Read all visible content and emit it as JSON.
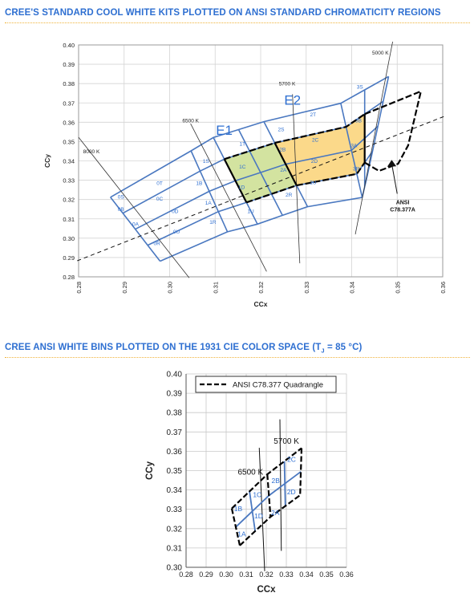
{
  "titles": {
    "chart1": "CREE'S STANDARD COOL WHITE KITS PLOTTED ON ANSI STANDARD CHROMATICITY REGIONS",
    "chart2_main": "CREE ANSI WHITE BINS PLOTTED ON THE 1931 CIE COLOR SPACE (T",
    "chart2_sub": "J",
    "chart2_tail": " = 85 °C)"
  },
  "chart_data": [
    {
      "type": "scatter",
      "xlabel": "CCx",
      "ylabel": "CCy",
      "xlim": [
        0.28,
        0.36
      ],
      "ylim": [
        0.28,
        0.4
      ],
      "xticks": [
        "0.28",
        "0.29",
        "0.30",
        "0.31",
        "0.32",
        "0.33",
        "0.34",
        "0.35",
        "0.36"
      ],
      "yticks": [
        "0.28",
        "0.29",
        "0.30",
        "0.31",
        "0.32",
        "0.33",
        "0.34",
        "0.35",
        "0.36",
        "0.37",
        "0.38",
        "0.39",
        "0.40"
      ],
      "grid": true,
      "colors": {
        "bins": "#4a78c0",
        "e1_fill": "#d3e3a0",
        "e2_fill": "#fbd98a",
        "cct_line": "#333333",
        "quadrangle": "#000000"
      },
      "bins": [
        {
          "label": "0S",
          "x": 0.2893,
          "y": 0.3215
        },
        {
          "label": "0T",
          "x": 0.2978,
          "y": 0.3285
        },
        {
          "label": "0B",
          "x": 0.2893,
          "y": 0.315
        },
        {
          "label": "0C",
          "x": 0.2978,
          "y": 0.3205
        },
        {
          "label": "0A",
          "x": 0.2925,
          "y": 0.3075
        },
        {
          "label": "0D",
          "x": 0.3012,
          "y": 0.314
        },
        {
          "label": "0R",
          "x": 0.2972,
          "y": 0.2975
        },
        {
          "label": "0U",
          "x": 0.3015,
          "y": 0.3035
        },
        {
          "label": "1S",
          "x": 0.308,
          "y": 0.34
        },
        {
          "label": "1T",
          "x": 0.316,
          "y": 0.349
        },
        {
          "label": "1B",
          "x": 0.3065,
          "y": 0.3285
        },
        {
          "label": "1C",
          "x": 0.316,
          "y": 0.337
        },
        {
          "label": "1A",
          "x": 0.3085,
          "y": 0.3185
        },
        {
          "label": "1D",
          "x": 0.3158,
          "y": 0.3265
        },
        {
          "label": "1R",
          "x": 0.3095,
          "y": 0.3085
        },
        {
          "label": "1U",
          "x": 0.3178,
          "y": 0.314
        },
        {
          "label": "2S",
          "x": 0.3245,
          "y": 0.3565
        },
        {
          "label": "2T",
          "x": 0.3315,
          "y": 0.364
        },
        {
          "label": "2B",
          "x": 0.3248,
          "y": 0.346
        },
        {
          "label": "2C",
          "x": 0.332,
          "y": 0.351
        },
        {
          "label": "2A",
          "x": 0.325,
          "y": 0.3355
        },
        {
          "label": "2D",
          "x": 0.3318,
          "y": 0.34
        },
        {
          "label": "2R",
          "x": 0.3262,
          "y": 0.3225
        },
        {
          "label": "2U",
          "x": 0.3315,
          "y": 0.329
        },
        {
          "label": "3S",
          "x": 0.3418,
          "y": 0.3785
        },
        {
          "label": "3B",
          "x": 0.3415,
          "y": 0.361
        },
        {
          "label": "3A",
          "x": 0.3405,
          "y": 0.348
        },
        {
          "label": "3R",
          "x": 0.341,
          "y": 0.336
        }
      ],
      "cct_labels": [
        "8000 K",
        "6500 K",
        "5700 K",
        "5000 K"
      ],
      "region_labels": [
        "E1",
        "E2"
      ],
      "annotation": [
        "ANSI",
        "C78.377A"
      ]
    },
    {
      "type": "scatter",
      "xlabel": "CCx",
      "ylabel": "CCy",
      "xlim": [
        0.28,
        0.36
      ],
      "ylim": [
        0.3,
        0.4
      ],
      "xticks": [
        "0.28",
        "0.29",
        "0.30",
        "0.31",
        "0.32",
        "0.33",
        "0.34",
        "0.35",
        "0.36"
      ],
      "yticks": [
        "0.30",
        "0.31",
        "0.32",
        "0.33",
        "0.34",
        "0.35",
        "0.36",
        "0.37",
        "0.38",
        "0.39",
        "0.40"
      ],
      "grid": true,
      "legend": "top",
      "legend_entry": "ANSI  C78.377 Quadrangle",
      "cct_labels": [
        "6500 K",
        "5700 K"
      ],
      "bins": [
        {
          "label": "1A",
          "x": 0.3078,
          "y": 0.3172
        },
        {
          "label": "1B",
          "x": 0.306,
          "y": 0.3302
        },
        {
          "label": "1C",
          "x": 0.3155,
          "y": 0.3376
        },
        {
          "label": "1D",
          "x": 0.3162,
          "y": 0.3265
        },
        {
          "label": "2A",
          "x": 0.3245,
          "y": 0.3282
        },
        {
          "label": "2B",
          "x": 0.3247,
          "y": 0.3448
        },
        {
          "label": "2C",
          "x": 0.3326,
          "y": 0.3558
        },
        {
          "label": "2D",
          "x": 0.3325,
          "y": 0.339
        }
      ]
    }
  ]
}
